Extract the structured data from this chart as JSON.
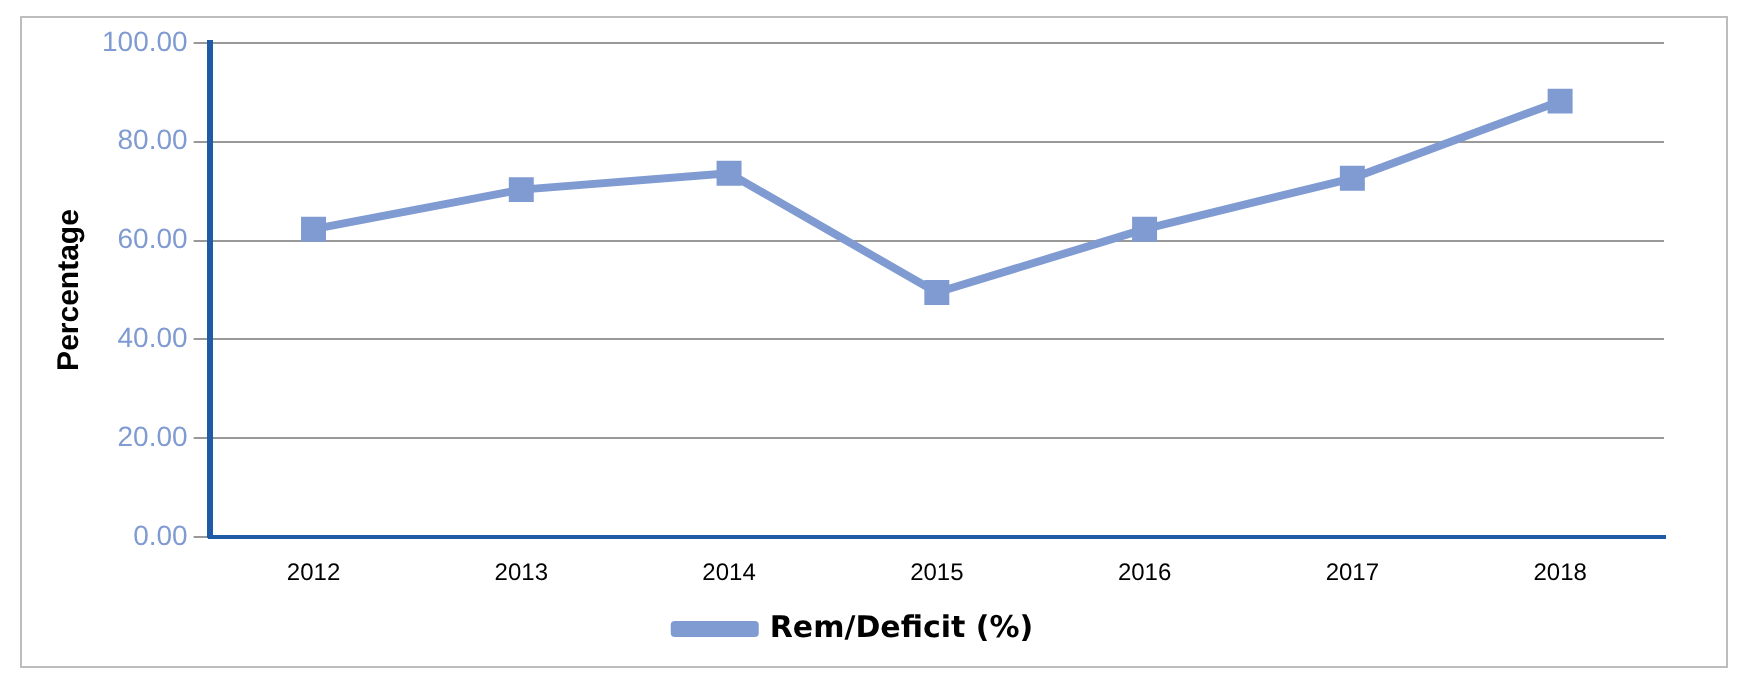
{
  "chart_data": {
    "type": "line",
    "ylabel": "Percentage",
    "categories": [
      "2012",
      "2013",
      "2014",
      "2015",
      "2016",
      "2017",
      "2018"
    ],
    "series": [
      {
        "name": "Rem/Deficit (%)",
        "color": "#7f9bd1",
        "values": [
          62.3,
          70.3,
          73.6,
          49.5,
          62.3,
          72.6,
          88.2
        ]
      }
    ],
    "ylim": [
      0,
      100
    ],
    "yticks": [
      {
        "value": 0,
        "label": "0.00"
      },
      {
        "value": 20,
        "label": "20.00"
      },
      {
        "value": 40,
        "label": "40.00"
      },
      {
        "value": 60,
        "label": "60.00"
      },
      {
        "value": 80,
        "label": "80.00"
      },
      {
        "value": 100,
        "label": "100.00"
      }
    ],
    "grid": "y",
    "legend": "bottom",
    "marker": "square",
    "line_style": "solid"
  }
}
